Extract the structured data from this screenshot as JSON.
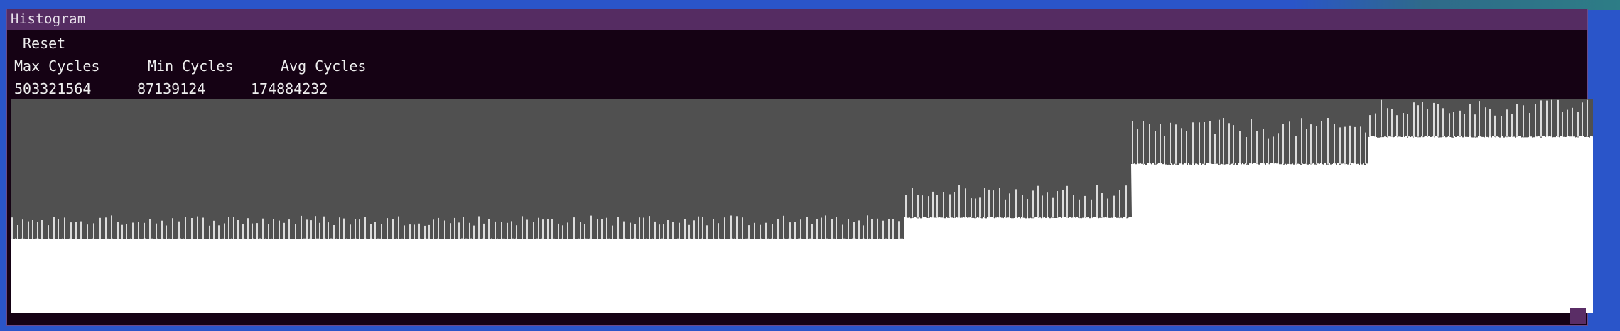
{
  "window": {
    "title": "Histogram",
    "minimize_glyph": "_"
  },
  "toolbar": {
    "reset_label": "Reset"
  },
  "stats": {
    "max_label": "Max Cycles",
    "min_label": "Min Cycles",
    "avg_label": "Avg Cycles",
    "max_value": "503321564",
    "min_value": "87139124",
    "avg_value": "174884232"
  },
  "colors": {
    "plot_background": "#505050",
    "plot_fill": "#ffffff",
    "titlebar": "#552c62",
    "window_background": "#150214"
  },
  "chart_data": {
    "type": "area",
    "ylim": [
      0,
      503321564
    ],
    "segments": [
      {
        "from": 0,
        "to": 0.565,
        "base": 174000000,
        "spike": 230000000
      },
      {
        "from": 0.565,
        "to": 0.708,
        "base": 224000000,
        "spike": 302000000
      },
      {
        "from": 0.708,
        "to": 0.858,
        "base": 351000000,
        "spike": 460000000
      },
      {
        "from": 0.858,
        "to": 1.0,
        "base": 415000000,
        "spike": 503321564
      }
    ]
  }
}
